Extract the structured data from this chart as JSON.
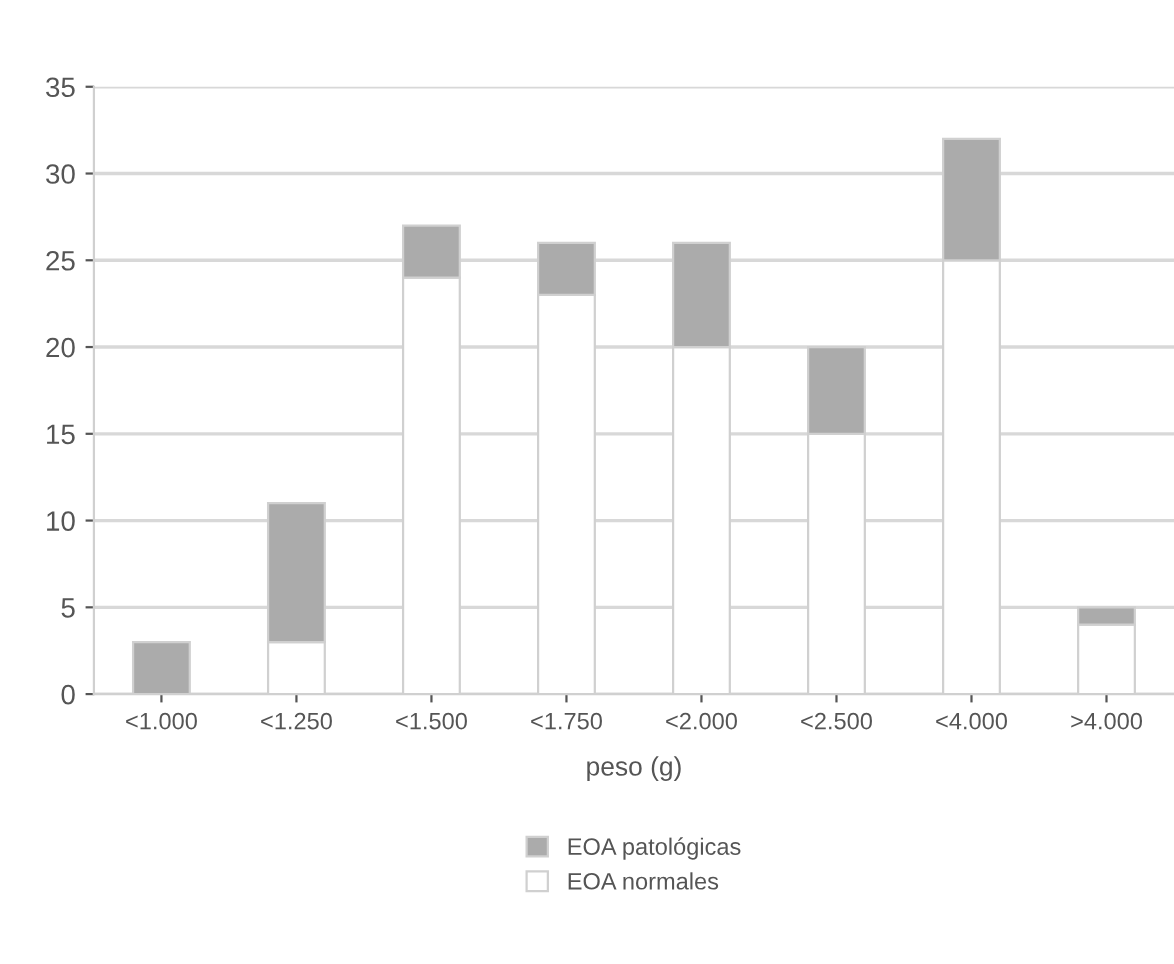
{
  "chart_data": {
    "type": "bar",
    "stacked": true,
    "xlabel": "peso (g)",
    "categories": [
      "<1.000",
      "<1.250",
      "<1.500",
      "<1.750",
      "<2.000",
      "<2.500",
      "<4.000",
      ">4.000"
    ],
    "series": [
      {
        "name": "EOA normales",
        "color": "#ffffff",
        "values": [
          0,
          3,
          24,
          23,
          20,
          15,
          25,
          4
        ]
      },
      {
        "name": "EOA patológicas",
        "color": "#ababab",
        "values": [
          3,
          8,
          3,
          3,
          6,
          5,
          7,
          1
        ]
      }
    ],
    "ylim": [
      0,
      35
    ],
    "yticks": [
      0,
      5,
      10,
      15,
      20,
      25,
      30,
      35
    ],
    "grid": "y",
    "legend": "bottom"
  }
}
